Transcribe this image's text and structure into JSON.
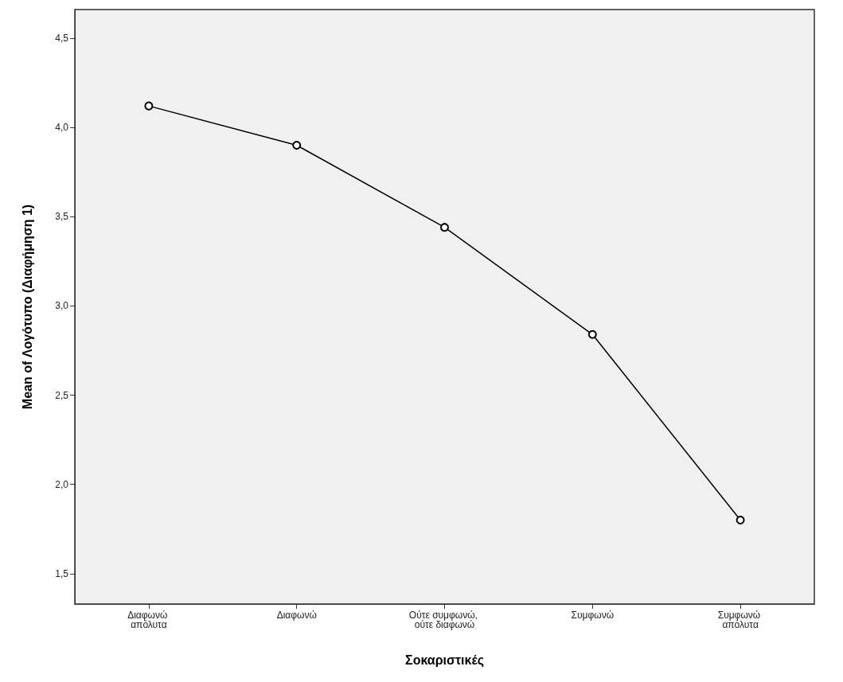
{
  "chart_data": {
    "type": "line",
    "xlabel": "Σοκαριστικές",
    "ylabel": "Mean of Λογότυπο (Διαφήμηση 1)",
    "categories": [
      "Διαφωνώ απόλυτα",
      "Διαφωνώ",
      "Ούτε συμφωνώ, ούτε διαφωνώ",
      "Συμφωνώ",
      "Συμφωνώ απόλυτα"
    ],
    "values": [
      4.12,
      3.9,
      3.44,
      2.84,
      1.8
    ],
    "color": "#000000",
    "ylim": [
      1.33,
      4.66
    ],
    "yticks": [
      {
        "value": 1.5,
        "label": "1,5"
      },
      {
        "value": 2.0,
        "label": "2,0"
      },
      {
        "value": 2.5,
        "label": "2,5"
      },
      {
        "value": 3.0,
        "label": "3,0"
      },
      {
        "value": 3.5,
        "label": "3,5"
      },
      {
        "value": 4.0,
        "label": "4,0"
      },
      {
        "value": 4.5,
        "label": "4,5"
      }
    ],
    "grid": false,
    "marker": "circle",
    "line_style": "solid"
  }
}
